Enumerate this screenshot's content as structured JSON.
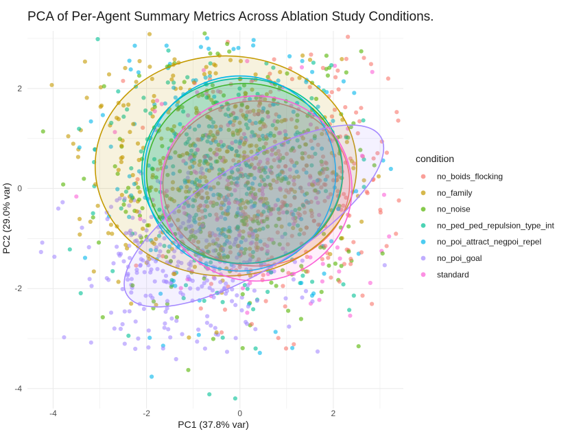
{
  "chart_data": {
    "type": "scatter",
    "title": "PCA of Per-Agent Summary Metrics Across Ablation Study Conditions.",
    "xlabel": "PC1 (37.8% var)",
    "ylabel": "PC2 (29.0% var)",
    "xlim": [
      -4.55,
      3.5
    ],
    "ylim": [
      -4.4,
      3.15
    ],
    "xticks": [
      -4,
      -2,
      0,
      2
    ],
    "yticks": [
      -4,
      -2,
      0,
      2
    ],
    "grid": true,
    "legend": {
      "title": "condition",
      "position": "right"
    },
    "series": [
      {
        "name": "no_boids_flocking",
        "color": "#F8766D",
        "ellipse": {
          "center": [
            0.35,
            0.1
          ],
          "sx": 2.0,
          "sy": 1.65,
          "rotate": 0.35,
          "fill_opacity": 0.13
        },
        "cloud": {
          "center": [
            0.9,
            0.1
          ],
          "sd": [
            1.25,
            1.25
          ],
          "n": 330
        }
      },
      {
        "name": "no_family",
        "color": "#C49A00",
        "ellipse": {
          "center": [
            -0.3,
            0.45
          ],
          "sx": 2.8,
          "sy": 2.2,
          "rotate": -0.1,
          "fill_opacity": 0.13
        },
        "cloud": {
          "center": [
            -0.6,
            0.55
          ],
          "sd": [
            1.45,
            1.2
          ],
          "n": 340
        }
      },
      {
        "name": "no_noise",
        "color": "#53B400",
        "ellipse": {
          "center": [
            0.1,
            0.3
          ],
          "sx": 2.1,
          "sy": 1.8,
          "rotate": 0.0,
          "fill_opacity": 0.12
        },
        "cloud": {
          "center": [
            0.0,
            0.0
          ],
          "sd": [
            1.4,
            1.3
          ],
          "n": 300
        }
      },
      {
        "name": "no_ped_ped_repulsion_type_int",
        "color": "#00C094",
        "ellipse": {
          "center": [
            0.05,
            0.35
          ],
          "sx": 2.15,
          "sy": 1.85,
          "rotate": 0.0,
          "fill_opacity": 0.12
        },
        "cloud": {
          "center": [
            -0.2,
            0.2
          ],
          "sd": [
            1.35,
            1.3
          ],
          "n": 220
        }
      },
      {
        "name": "no_poi_attract_negpoi_repel",
        "color": "#00B6EB",
        "ellipse": {
          "center": [
            0.0,
            0.3
          ],
          "sx": 2.05,
          "sy": 1.95,
          "rotate": 0.0,
          "fill_opacity": 0.12
        },
        "cloud": {
          "center": [
            -0.3,
            0.3
          ],
          "sd": [
            1.35,
            1.35
          ],
          "n": 230
        }
      },
      {
        "name": "no_poi_goal",
        "color": "#A58AFF",
        "ellipse": {
          "center": [
            0.3,
            -0.55
          ],
          "sx": 3.2,
          "sy": 1.05,
          "rotate": 32,
          "fill_opacity": 0.12
        },
        "cloud": {
          "center": [
            -1.2,
            -1.6
          ],
          "sd": [
            1.2,
            0.8
          ],
          "n": 280
        }
      },
      {
        "name": "standard",
        "color": "#FB61D7",
        "ellipse": {
          "center": [
            0.35,
            0.0
          ],
          "sx": 2.05,
          "sy": 1.85,
          "rotate": 0.15,
          "fill_opacity": 0.1
        },
        "cloud": {
          "center": [
            0.4,
            0.0
          ],
          "sd": [
            1.2,
            1.2
          ],
          "n": 160
        }
      }
    ]
  }
}
